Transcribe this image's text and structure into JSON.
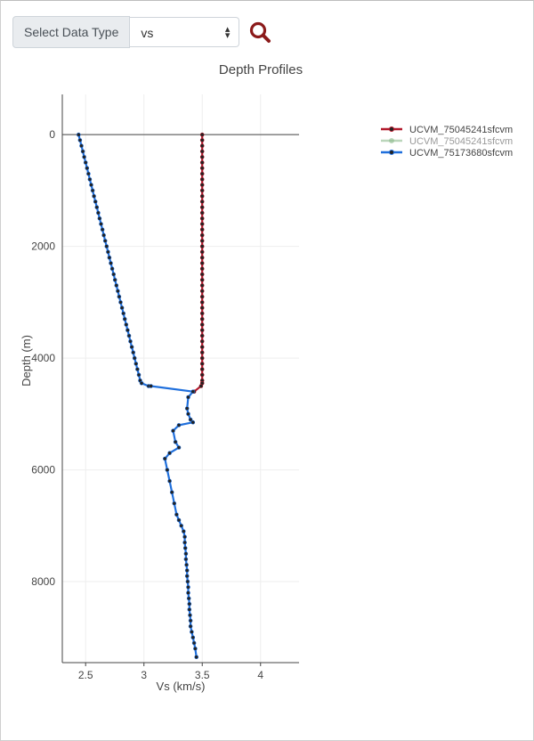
{
  "controls": {
    "select_label": "Select Data Type",
    "select_value": "vs",
    "search_icon": "search-icon",
    "accent_color": "#8b1a1a"
  },
  "chart_data": {
    "type": "line",
    "title": "Depth Profiles",
    "xlabel": "Vs (km/s)",
    "ylabel": "Depth (m)",
    "xlim": [
      2.3,
      4.33
    ],
    "ylim": [
      9450,
      -720
    ],
    "y_reversed": true,
    "xticks": [
      2.5,
      3,
      3.5,
      4
    ],
    "xtick_labels": [
      "2.5",
      "3",
      "3.5",
      "4"
    ],
    "yticks": [
      0,
      2000,
      4000,
      6000,
      8000
    ],
    "ytick_labels": [
      "0",
      "2000",
      "4000",
      "6000",
      "8000"
    ],
    "grid": true,
    "legend_position": "top-right",
    "series": [
      {
        "name": "UCVM_75045241sfcvm",
        "color": "#b2182b",
        "visible": true,
        "x": [
          3.5,
          3.5,
          3.5,
          3.5,
          3.5,
          3.5,
          3.5,
          3.5,
          3.5,
          3.5,
          3.5,
          3.5,
          3.5,
          3.5,
          3.5,
          3.5,
          3.5,
          3.5,
          3.5,
          3.5,
          3.5,
          3.5,
          3.5,
          3.5,
          3.5,
          3.5,
          3.5,
          3.5,
          3.5,
          3.5,
          3.5,
          3.5,
          3.5,
          3.5,
          3.5,
          3.5,
          3.5,
          3.5,
          3.5,
          3.5,
          3.5,
          3.5,
          3.5,
          3.5,
          3.5,
          3.5,
          3.49,
          3.43
        ],
        "y": [
          0,
          100,
          200,
          300,
          400,
          500,
          600,
          700,
          800,
          900,
          1000,
          1100,
          1200,
          1300,
          1400,
          1500,
          1600,
          1700,
          1800,
          1900,
          2000,
          2100,
          2200,
          2300,
          2400,
          2500,
          2600,
          2700,
          2800,
          2900,
          3000,
          3100,
          3200,
          3300,
          3400,
          3500,
          3600,
          3700,
          3800,
          3900,
          4000,
          4100,
          4200,
          4300,
          4400,
          4450,
          4500,
          4600
        ]
      },
      {
        "name": "UCVM_75045241sfcvm",
        "color": "#8fbc8f",
        "visible": false,
        "x": [],
        "y": []
      },
      {
        "name": "UCVM_75173680sfcvm",
        "color": "#1f6fdc",
        "visible": true,
        "x": [
          2.44,
          2.452,
          2.464,
          2.476,
          2.488,
          2.5,
          2.512,
          2.524,
          2.536,
          2.548,
          2.56,
          2.572,
          2.584,
          2.596,
          2.608,
          2.62,
          2.632,
          2.644,
          2.656,
          2.668,
          2.68,
          2.692,
          2.704,
          2.716,
          2.728,
          2.74,
          2.752,
          2.764,
          2.776,
          2.788,
          2.8,
          2.812,
          2.824,
          2.836,
          2.848,
          2.86,
          2.872,
          2.884,
          2.896,
          2.908,
          2.92,
          2.932,
          2.944,
          2.956,
          2.968,
          2.98,
          3.04,
          3.06,
          3.42,
          3.38,
          3.37,
          3.38,
          3.4,
          3.42,
          3.3,
          3.25,
          3.27,
          3.3,
          3.22,
          3.18,
          3.2,
          3.22,
          3.24,
          3.26,
          3.28,
          3.3,
          3.32,
          3.34,
          3.35,
          3.35,
          3.355,
          3.36,
          3.36,
          3.365,
          3.37,
          3.37,
          3.375,
          3.38,
          3.38,
          3.385,
          3.39,
          3.39,
          3.395,
          3.4,
          3.4,
          3.41,
          3.42,
          3.43,
          3.44,
          3.45
        ],
        "y": [
          0,
          100,
          200,
          300,
          400,
          500,
          600,
          700,
          800,
          900,
          1000,
          1100,
          1200,
          1300,
          1400,
          1500,
          1600,
          1700,
          1800,
          1900,
          2000,
          2100,
          2200,
          2300,
          2400,
          2500,
          2600,
          2700,
          2800,
          2900,
          3000,
          3100,
          3200,
          3300,
          3400,
          3500,
          3600,
          3700,
          3800,
          3900,
          4000,
          4100,
          4200,
          4300,
          4400,
          4450,
          4500,
          4500,
          4600,
          4700,
          4900,
          5000,
          5100,
          5150,
          5200,
          5300,
          5500,
          5600,
          5700,
          5800,
          6000,
          6200,
          6400,
          6600,
          6800,
          6900,
          7000,
          7100,
          7200,
          7300,
          7400,
          7500,
          7600,
          7700,
          7800,
          7900,
          8000,
          8100,
          8200,
          8300,
          8400,
          8500,
          8600,
          8700,
          8800,
          8900,
          9000,
          9100,
          9200,
          9350
        ]
      }
    ]
  }
}
